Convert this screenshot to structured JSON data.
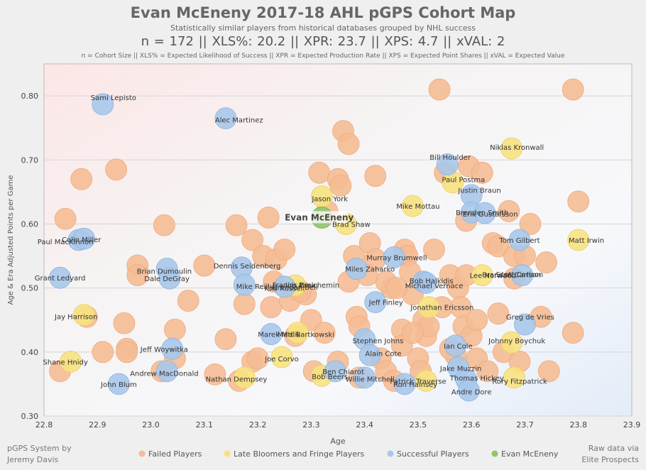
{
  "header": {
    "title": "Evan McEneny 2017-18 AHL pGPS Cohort Map",
    "subtitle": "Statistically similar players from historical databases grouped by NHL success",
    "stats": "n = 172   ||   XLS%: 20.2   ||   XPR: 23.7   ||   XPS: 4.7   ||   xVAL: 2",
    "definitions": "n = Cohort Size || XLS% = Expected Likelihood of Success || XPR = Expected Production Rate || XPS = Expected Point Shares || xVAL = Expected Value"
  },
  "footer": {
    "left_line1": "pGPS System by",
    "left_line2": "Jeremy Davis",
    "right_line1": "Raw data via",
    "right_line2": "Elite Prospects"
  },
  "colors": {
    "failed": "#f5bc95",
    "late": "#f7e27f",
    "successful": "#a9c8ea",
    "subject": "#90c46c"
  },
  "chart_data": {
    "type": "scatter",
    "xlabel": "Age",
    "ylabel": "Age & Era Adjusted Points per Game",
    "xlim": [
      22.8,
      23.9
    ],
    "ylim": [
      0.3,
      0.85
    ],
    "xticks": [
      "22.8",
      "22.9",
      "23.0",
      "23.1",
      "23.2",
      "23.3",
      "23.4",
      "23.5",
      "23.6",
      "23.7",
      "23.8",
      "23.9"
    ],
    "yticks": [
      "0.30",
      "0.40",
      "0.50",
      "0.60",
      "0.70",
      "0.80"
    ],
    "legend": [
      {
        "key": "failed",
        "label": "Failed Players"
      },
      {
        "key": "late",
        "label": "Late Bloomers and Fringe Players"
      },
      {
        "key": "successful",
        "label": "Successful Players"
      },
      {
        "key": "subject",
        "label": "Evan McEneny"
      }
    ],
    "failed_points": [
      [
        22.83,
        0.37
      ],
      [
        22.84,
        0.608
      ],
      [
        22.87,
        0.67
      ],
      [
        22.88,
        0.455
      ],
      [
        22.91,
        0.4
      ],
      [
        22.935,
        0.685
      ],
      [
        22.95,
        0.445
      ],
      [
        22.955,
        0.405
      ],
      [
        22.955,
        0.4
      ],
      [
        22.975,
        0.535
      ],
      [
        22.975,
        0.52
      ],
      [
        23.02,
        0.37
      ],
      [
        23.025,
        0.598
      ],
      [
        23.045,
        0.435
      ],
      [
        23.045,
        0.39
      ],
      [
        23.07,
        0.48
      ],
      [
        23.1,
        0.535
      ],
      [
        23.14,
        0.42
      ],
      [
        23.16,
        0.598
      ],
      [
        23.165,
        0.355
      ],
      [
        23.175,
        0.475
      ],
      [
        23.19,
        0.575
      ],
      [
        23.19,
        0.385
      ],
      [
        23.21,
        0.55
      ],
      [
        23.22,
        0.61
      ],
      [
        23.225,
        0.47
      ],
      [
        23.23,
        0.51
      ],
      [
        23.235,
        0.545
      ],
      [
        23.25,
        0.56
      ],
      [
        23.26,
        0.48
      ],
      [
        23.27,
        0.425
      ],
      [
        23.29,
        0.49
      ],
      [
        23.3,
        0.45
      ],
      [
        23.305,
        0.37
      ],
      [
        23.315,
        0.68
      ],
      [
        23.325,
        0.43
      ],
      [
        23.35,
        0.67
      ],
      [
        23.35,
        0.385
      ],
      [
        23.355,
        0.66
      ],
      [
        23.36,
        0.745
      ],
      [
        23.37,
        0.725
      ],
      [
        23.37,
        0.51
      ],
      [
        23.38,
        0.55
      ],
      [
        23.385,
        0.455
      ],
      [
        23.39,
        0.44
      ],
      [
        23.39,
        0.36
      ],
      [
        23.41,
        0.57
      ],
      [
        23.42,
        0.675
      ],
      [
        23.42,
        0.545
      ],
      [
        23.43,
        0.39
      ],
      [
        23.44,
        0.37
      ],
      [
        23.45,
        0.5
      ],
      [
        23.455,
        0.355
      ],
      [
        23.47,
        0.435
      ],
      [
        23.47,
        0.41
      ],
      [
        23.475,
        0.56
      ],
      [
        23.48,
        0.55
      ],
      [
        23.485,
        0.525
      ],
      [
        23.49,
        0.49
      ],
      [
        23.5,
        0.39
      ],
      [
        23.505,
        0.37
      ],
      [
        23.51,
        0.45
      ],
      [
        23.515,
        0.425
      ],
      [
        23.53,
        0.56
      ],
      [
        23.54,
        0.81
      ],
      [
        23.545,
        0.47
      ],
      [
        23.55,
        0.68
      ],
      [
        23.56,
        0.52
      ],
      [
        23.57,
        0.395
      ],
      [
        23.575,
        0.5
      ],
      [
        23.58,
        0.47
      ],
      [
        23.585,
        0.44
      ],
      [
        23.59,
        0.605
      ],
      [
        23.595,
        0.69
      ],
      [
        23.6,
        0.425
      ],
      [
        23.61,
        0.39
      ],
      [
        23.62,
        0.68
      ],
      [
        23.64,
        0.57
      ],
      [
        23.65,
        0.565
      ],
      [
        23.65,
        0.46
      ],
      [
        23.66,
        0.4
      ],
      [
        23.67,
        0.62
      ],
      [
        23.68,
        0.55
      ],
      [
        23.69,
        0.385
      ],
      [
        23.7,
        0.55
      ],
      [
        23.71,
        0.6
      ],
      [
        23.73,
        0.455
      ],
      [
        23.74,
        0.54
      ],
      [
        23.745,
        0.37
      ],
      [
        23.79,
        0.81
      ],
      [
        23.79,
        0.43
      ],
      [
        23.8,
        0.635
      ],
      [
        23.12,
        0.365
      ],
      [
        23.2,
        0.39
      ],
      [
        23.28,
        0.495
      ],
      [
        23.44,
        0.51
      ],
      [
        23.52,
        0.44
      ],
      [
        23.63,
        0.37
      ],
      [
        23.46,
        0.5
      ],
      [
        23.56,
        0.405
      ],
      [
        23.61,
        0.45
      ],
      [
        23.68,
        0.515
      ],
      [
        23.59,
        0.52
      ],
      [
        23.49,
        0.43
      ],
      [
        23.405,
        0.52
      ],
      [
        23.33,
        0.62
      ]
    ],
    "late_points": [
      [
        22.875,
        0.458,
        "Jay Harrison"
      ],
      [
        22.85,
        0.385,
        "Shane Hnidy"
      ],
      [
        23.175,
        0.36,
        "Nathan Dempsey"
      ],
      [
        23.245,
        0.392,
        "Joe Corvo"
      ],
      [
        23.27,
        0.504,
        "Brendan Bell"
      ],
      [
        23.275,
        0.43,
        "Matt Bartkowski"
      ],
      [
        23.32,
        0.643,
        "Jason York"
      ],
      [
        23.32,
        0.363,
        "Bob Beers"
      ],
      [
        23.365,
        0.6,
        "Brad Shaw"
      ],
      [
        23.49,
        0.628,
        "Mike Mottau"
      ],
      [
        23.52,
        0.47,
        "Jonathan Ericsson"
      ],
      [
        23.515,
        0.355,
        "Ron Hainsey"
      ],
      [
        23.565,
        0.665,
        "Paul Postma"
      ],
      [
        23.62,
        0.52,
        "Lee Norwood"
      ],
      [
        23.675,
        0.718,
        "Niklas Kronwall"
      ],
      [
        23.675,
        0.415,
        "Johnny Boychuk"
      ],
      [
        23.68,
        0.36,
        "Rory Fitzpatrick"
      ],
      [
        23.8,
        0.575,
        "Matt Irwin"
      ]
    ],
    "successful_points": [
      [
        22.91,
        0.787,
        "Sami Lepisto"
      ],
      [
        22.83,
        0.516,
        "Grant Ledyard"
      ],
      [
        22.865,
        0.575,
        "Paul MacKinnon"
      ],
      [
        22.875,
        0.577,
        "Colin Miller"
      ],
      [
        22.94,
        0.35,
        "John Blum"
      ],
      [
        23.03,
        0.53,
        "Brian Dumoulin"
      ],
      [
        23.035,
        0.515,
        "Dale DeGray"
      ],
      [
        23.04,
        0.405,
        "Jeff Woywitka"
      ],
      [
        23.03,
        0.37,
        "Andrew MacDonald"
      ],
      [
        23.14,
        0.765,
        "Alec Martinez"
      ],
      [
        23.17,
        0.532,
        "Dennis Seidenberg"
      ],
      [
        23.175,
        0.505,
        "Mike Reilly"
      ],
      [
        23.225,
        0.428,
        "Marek Malik"
      ],
      [
        23.25,
        0.502,
        "Kris Russell"
      ],
      [
        23.345,
        0.37,
        "Ben Chiarot"
      ],
      [
        23.385,
        0.53,
        "Miles Zaharko"
      ],
      [
        23.4,
        0.42,
        "Stephen Johns"
      ],
      [
        23.4,
        0.36,
        "Willie Mitchell"
      ],
      [
        23.41,
        0.395,
        "Alain Cote"
      ],
      [
        23.42,
        0.478,
        "Jeff Finley"
      ],
      [
        23.455,
        0.548,
        "Murray Brumwell"
      ],
      [
        23.475,
        0.35,
        "Patrick Traverse"
      ],
      [
        23.51,
        0.51,
        "Bob Halkidis"
      ],
      [
        23.515,
        0.508,
        "Michael Vernace"
      ],
      [
        23.555,
        0.693,
        "Bill Houlder"
      ],
      [
        23.57,
        0.41,
        "Ian Cole"
      ],
      [
        23.575,
        0.376,
        "Jake Muzzin"
      ],
      [
        23.59,
        0.357,
        "Thomas Hickey"
      ],
      [
        23.595,
        0.34,
        "Andre Dore"
      ],
      [
        23.6,
        0.645,
        "Justin Braun"
      ],
      [
        23.6,
        0.618,
        "Brenden Smith"
      ],
      [
        23.625,
        0.617,
        "Erik Gustafsson"
      ],
      [
        23.69,
        0.575,
        "Tom Gilbert"
      ],
      [
        23.695,
        0.52,
        "Brandon Carlson"
      ],
      [
        23.7,
        0.443,
        "Greg de Vries"
      ]
    ],
    "subject_points": [
      [
        23.32,
        0.61,
        "Evan McEneny"
      ]
    ],
    "labels": [
      {
        "text": "Sami Lepisto",
        "x": 22.93,
        "y": 0.798
      },
      {
        "text": "Grant Ledyard",
        "x": 22.83,
        "y": 0.516
      },
      {
        "text": "Paul MacKinnon",
        "x": 22.84,
        "y": 0.573
      },
      {
        "text": "Colin Miller",
        "x": 22.87,
        "y": 0.576
      },
      {
        "text": "Jay Harrison",
        "x": 22.86,
        "y": 0.456
      },
      {
        "text": "Shane Hnidy",
        "x": 22.84,
        "y": 0.385
      },
      {
        "text": "John Blum",
        "x": 22.94,
        "y": 0.35
      },
      {
        "text": "Andrew MacDonald",
        "x": 23.025,
        "y": 0.367
      },
      {
        "text": "Jeff Woywitka",
        "x": 23.025,
        "y": 0.405
      },
      {
        "text": "Brian Dumoulin",
        "x": 23.025,
        "y": 0.527
      },
      {
        "text": "Dale DeGray",
        "x": 23.03,
        "y": 0.515
      },
      {
        "text": "Alec Martinez",
        "x": 23.165,
        "y": 0.763
      },
      {
        "text": "Dennis Seidenberg",
        "x": 23.18,
        "y": 0.535
      },
      {
        "text": "Mike Reilly",
        "x": 23.195,
        "y": 0.503
      },
      {
        "text": "Kris Russell",
        "x": 23.25,
        "y": 0.5
      },
      {
        "text": "Brendan Bell",
        "x": 23.27,
        "y": 0.502
      },
      {
        "text": "Jim Paek",
        "x": 23.28,
        "y": 0.505
      },
      {
        "text": "Francis Bouchemin",
        "x": 23.29,
        "y": 0.505
      },
      {
        "text": "Marek Malik",
        "x": 23.24,
        "y": 0.428
      },
      {
        "text": "Matt Bartkowski",
        "x": 23.29,
        "y": 0.428
      },
      {
        "text": "Joe Corvo",
        "x": 23.245,
        "y": 0.39
      },
      {
        "text": "Nathan Dempsey",
        "x": 23.16,
        "y": 0.358
      },
      {
        "text": "Ben Chiarot",
        "x": 23.36,
        "y": 0.37
      },
      {
        "text": "Bob Beers",
        "x": 23.335,
        "y": 0.362
      },
      {
        "text": "Jason York",
        "x": 23.335,
        "y": 0.64
      },
      {
        "text": "Evan McEneny",
        "x": 23.315,
        "y": 0.61
      },
      {
        "text": "Brad Shaw",
        "x": 23.375,
        "y": 0.6
      },
      {
        "text": "Miles Zaharko",
        "x": 23.41,
        "y": 0.53
      },
      {
        "text": "Murray Brumwell",
        "x": 23.46,
        "y": 0.548
      },
      {
        "text": "Jeff Finley",
        "x": 23.44,
        "y": 0.478
      },
      {
        "text": "Stephen Johns",
        "x": 23.425,
        "y": 0.418
      },
      {
        "text": "Alain Cote",
        "x": 23.435,
        "y": 0.398
      },
      {
        "text": "Willie Mitchell",
        "x": 23.41,
        "y": 0.358
      },
      {
        "text": "Patrick Traverse",
        "x": 23.5,
        "y": 0.355
      },
      {
        "text": "Ron Hainsey",
        "x": 23.495,
        "y": 0.35
      },
      {
        "text": "Mike Mottau",
        "x": 23.5,
        "y": 0.628
      },
      {
        "text": "Bill Houlder",
        "x": 23.56,
        "y": 0.705
      },
      {
        "text": "Paul Postma",
        "x": 23.585,
        "y": 0.67
      },
      {
        "text": "Justin Braun",
        "x": 23.615,
        "y": 0.653
      },
      {
        "text": "Brenden Smith",
        "x": 23.62,
        "y": 0.618
      },
      {
        "text": "Erik Gustafsson",
        "x": 23.635,
        "y": 0.616
      },
      {
        "text": "Bob Halkidis",
        "x": 23.525,
        "y": 0.512
      },
      {
        "text": "Michael Vernace",
        "x": 23.53,
        "y": 0.504
      },
      {
        "text": "Jonathan Ericsson",
        "x": 23.545,
        "y": 0.47
      },
      {
        "text": "Lee Norwood",
        "x": 23.64,
        "y": 0.52
      },
      {
        "text": "Brandon Carlson",
        "x": 23.675,
        "y": 0.521
      },
      {
        "text": "Scott Carlson",
        "x": 23.69,
        "y": 0.522
      },
      {
        "text": "Tom Gilbert",
        "x": 23.69,
        "y": 0.575
      },
      {
        "text": "Niklas Kronwall",
        "x": 23.685,
        "y": 0.72
      },
      {
        "text": "Greg de Vries",
        "x": 23.71,
        "y": 0.455
      },
      {
        "text": "Johnny Boychuk",
        "x": 23.685,
        "y": 0.418
      },
      {
        "text": "Ian Cole",
        "x": 23.575,
        "y": 0.41
      },
      {
        "text": "Jake Muzzin",
        "x": 23.58,
        "y": 0.375
      },
      {
        "text": "Thomas Hickey",
        "x": 23.61,
        "y": 0.36
      },
      {
        "text": "Rory Fitzpatrick",
        "x": 23.69,
        "y": 0.355
      },
      {
        "text": "Andre Dore",
        "x": 23.6,
        "y": 0.338
      },
      {
        "text": "Matt Irwin",
        "x": 23.815,
        "y": 0.575
      }
    ]
  }
}
